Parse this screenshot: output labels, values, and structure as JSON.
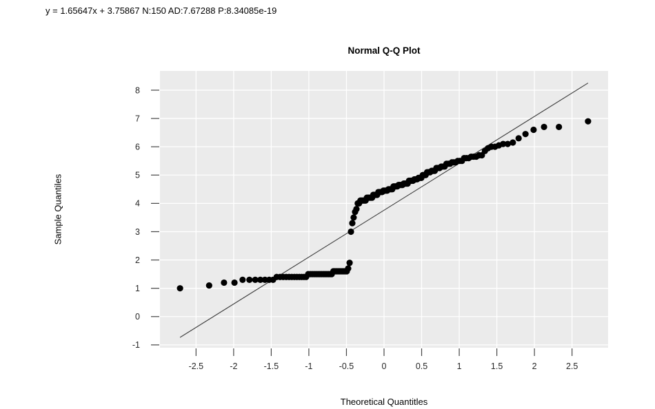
{
  "header": {
    "fit_stats": "y = 1.65647x + 3.75867 N:150 AD:7.67288 P:8.34085e-19"
  },
  "chart_data": {
    "type": "scatter",
    "subtype": "normal-qq-plot",
    "title": "Normal Q-Q Plot",
    "xlabel": "Theoretical Quantitles",
    "ylabel": "Sample Quantiles",
    "n": 150,
    "fit": {
      "slope": 1.65647,
      "intercept": 3.75867,
      "N": 150,
      "AD": 7.67288,
      "P": "8.34085e-19"
    },
    "xlim": [
      -2.98,
      2.98
    ],
    "ylim": [
      -1.1,
      8.68
    ],
    "grid": "on",
    "legend": "none",
    "x_ticks": {
      "values": [
        -2.5,
        -2,
        -1.5,
        -1,
        -0.5,
        0,
        0.5,
        1,
        1.5,
        2,
        2.5
      ],
      "labels": [
        "-2.5",
        "-2",
        "-1.5",
        "-1",
        "-0.5",
        "0",
        "0.5",
        "1",
        "1.5",
        "2",
        "2.5"
      ]
    },
    "y_ticks": {
      "values": [
        -1,
        0,
        1,
        2,
        3,
        4,
        5,
        6,
        7,
        8
      ],
      "labels": [
        "-1",
        "0",
        "1",
        "2",
        "3",
        "4",
        "5",
        "6",
        "7",
        "8"
      ]
    },
    "colors": {
      "panel_bg": "#EBEBEB",
      "grid": "#FFFFFF",
      "point": "#000000",
      "line": "#3D3D3D",
      "tick": "#444444",
      "text": "#262626"
    },
    "reference_line": {
      "slope": 1.65647,
      "intercept": 3.75867,
      "x_start": -2.713,
      "x_end": 2.713
    },
    "points": [
      [
        -2.713,
        1.0
      ],
      [
        -2.326,
        1.1
      ],
      [
        -2.128,
        1.2
      ],
      [
        -1.989,
        1.2
      ],
      [
        -1.881,
        1.3
      ],
      [
        -1.79,
        1.3
      ],
      [
        -1.713,
        1.3
      ],
      [
        -1.645,
        1.3
      ],
      [
        -1.584,
        1.3
      ],
      [
        -1.527,
        1.3
      ],
      [
        -1.476,
        1.3
      ],
      [
        -1.428,
        1.4
      ],
      [
        -1.383,
        1.4
      ],
      [
        -1.341,
        1.4
      ],
      [
        -1.301,
        1.4
      ],
      [
        -1.263,
        1.4
      ],
      [
        -1.227,
        1.4
      ],
      [
        -1.192,
        1.4
      ],
      [
        -1.159,
        1.4
      ],
      [
        -1.126,
        1.4
      ],
      [
        -1.095,
        1.4
      ],
      [
        -1.065,
        1.4
      ],
      [
        -1.036,
        1.4
      ],
      [
        -1.008,
        1.5
      ],
      [
        -0.98,
        1.5
      ],
      [
        -0.954,
        1.5
      ],
      [
        -0.928,
        1.5
      ],
      [
        -0.903,
        1.5
      ],
      [
        -0.878,
        1.5
      ],
      [
        -0.854,
        1.5
      ],
      [
        -0.83,
        1.5
      ],
      [
        -0.806,
        1.5
      ],
      [
        -0.784,
        1.5
      ],
      [
        -0.761,
        1.5
      ],
      [
        -0.739,
        1.5
      ],
      [
        -0.717,
        1.5
      ],
      [
        -0.696,
        1.5
      ],
      [
        -0.674,
        1.6
      ],
      [
        -0.654,
        1.6
      ],
      [
        -0.633,
        1.6
      ],
      [
        -0.613,
        1.6
      ],
      [
        -0.593,
        1.6
      ],
      [
        -0.573,
        1.6
      ],
      [
        -0.553,
        1.6
      ],
      [
        -0.534,
        1.6
      ],
      [
        -0.515,
        1.6
      ],
      [
        -0.496,
        1.6
      ],
      [
        -0.477,
        1.7
      ],
      [
        -0.458,
        1.9
      ],
      [
        -0.44,
        3.0
      ],
      [
        -0.422,
        3.3
      ],
      [
        -0.404,
        3.5
      ],
      [
        -0.385,
        3.7
      ],
      [
        -0.367,
        3.8
      ],
      [
        -0.35,
        4.0
      ],
      [
        -0.332,
        4.0
      ],
      [
        -0.314,
        4.1
      ],
      [
        -0.297,
        4.1
      ],
      [
        -0.279,
        4.1
      ],
      [
        -0.262,
        4.1
      ],
      [
        -0.245,
        4.1
      ],
      [
        -0.228,
        4.2
      ],
      [
        -0.21,
        4.2
      ],
      [
        -0.193,
        4.2
      ],
      [
        -0.176,
        4.2
      ],
      [
        -0.159,
        4.2
      ],
      [
        -0.143,
        4.3
      ],
      [
        -0.126,
        4.3
      ],
      [
        -0.109,
        4.3
      ],
      [
        -0.092,
        4.3
      ],
      [
        -0.075,
        4.4
      ],
      [
        -0.059,
        4.4
      ],
      [
        -0.042,
        4.4
      ],
      [
        -0.025,
        4.4
      ],
      [
        -0.008,
        4.45
      ],
      [
        0.008,
        4.45
      ],
      [
        0.025,
        4.45
      ],
      [
        0.042,
        4.45
      ],
      [
        0.059,
        4.5
      ],
      [
        0.075,
        4.5
      ],
      [
        0.092,
        4.5
      ],
      [
        0.109,
        4.5
      ],
      [
        0.126,
        4.6
      ],
      [
        0.143,
        4.6
      ],
      [
        0.159,
        4.6
      ],
      [
        0.176,
        4.6
      ],
      [
        0.193,
        4.65
      ],
      [
        0.21,
        4.65
      ],
      [
        0.228,
        4.65
      ],
      [
        0.245,
        4.65
      ],
      [
        0.262,
        4.7
      ],
      [
        0.279,
        4.7
      ],
      [
        0.297,
        4.7
      ],
      [
        0.314,
        4.7
      ],
      [
        0.332,
        4.8
      ],
      [
        0.35,
        4.8
      ],
      [
        0.367,
        4.8
      ],
      [
        0.385,
        4.8
      ],
      [
        0.404,
        4.85
      ],
      [
        0.422,
        4.85
      ],
      [
        0.44,
        4.85
      ],
      [
        0.458,
        4.9
      ],
      [
        0.477,
        4.9
      ],
      [
        0.496,
        4.9
      ],
      [
        0.515,
        5.0
      ],
      [
        0.534,
        5.0
      ],
      [
        0.553,
        5.0
      ],
      [
        0.573,
        5.1
      ],
      [
        0.593,
        5.1
      ],
      [
        0.613,
        5.1
      ],
      [
        0.633,
        5.15
      ],
      [
        0.654,
        5.15
      ],
      [
        0.674,
        5.15
      ],
      [
        0.696,
        5.25
      ],
      [
        0.717,
        5.25
      ],
      [
        0.739,
        5.25
      ],
      [
        0.761,
        5.3
      ],
      [
        0.784,
        5.3
      ],
      [
        0.806,
        5.3
      ],
      [
        0.83,
        5.4
      ],
      [
        0.854,
        5.4
      ],
      [
        0.878,
        5.4
      ],
      [
        0.903,
        5.45
      ],
      [
        0.928,
        5.45
      ],
      [
        0.954,
        5.45
      ],
      [
        0.98,
        5.5
      ],
      [
        1.008,
        5.5
      ],
      [
        1.036,
        5.5
      ],
      [
        1.065,
        5.6
      ],
      [
        1.095,
        5.6
      ],
      [
        1.126,
        5.6
      ],
      [
        1.159,
        5.65
      ],
      [
        1.192,
        5.65
      ],
      [
        1.227,
        5.65
      ],
      [
        1.263,
        5.7
      ],
      [
        1.301,
        5.7
      ],
      [
        1.341,
        5.85
      ],
      [
        1.383,
        5.95
      ],
      [
        1.428,
        6.0
      ],
      [
        1.476,
        6.0
      ],
      [
        1.527,
        6.05
      ],
      [
        1.584,
        6.1
      ],
      [
        1.645,
        6.1
      ],
      [
        1.713,
        6.15
      ],
      [
        1.79,
        6.3
      ],
      [
        1.881,
        6.45
      ],
      [
        1.989,
        6.6
      ],
      [
        2.128,
        6.7
      ],
      [
        2.326,
        6.7
      ],
      [
        2.713,
        6.9
      ]
    ]
  }
}
